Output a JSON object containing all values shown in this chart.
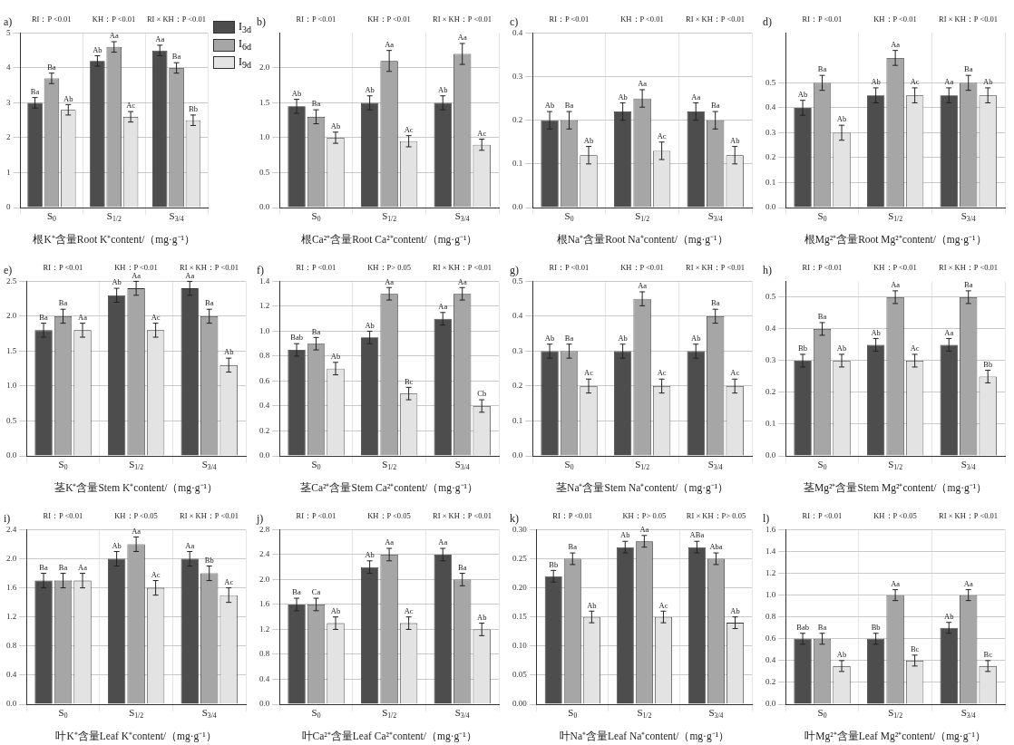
{
  "chart_data": [
    {
      "type": "bar",
      "title": "a)",
      "xlabel": "根K⁺含量Root K⁺content/（mg·g⁻¹）",
      "categories": [
        "S$_{0}$",
        "S$_{1/2}$",
        "S$_{3/4}$"
      ],
      "ylim": [
        0,
        5
      ],
      "yticks": [
        0,
        1,
        2,
        3,
        4,
        5
      ],
      "grid": true,
      "legend": "top right",
      "annotations": [
        "RI：P <0.01",
        "KH：P <0.01",
        "RI × KH：P <0.01"
      ],
      "series": [
        {
          "name": "I$_{3d}$",
          "color": "#4d4d4d",
          "values": [
            3.0,
            4.2,
            4.5
          ],
          "errors": [
            0.15,
            0.15,
            0.15
          ],
          "value_labels": [
            "Ba",
            "Ab",
            "Aa"
          ]
        },
        {
          "name": "I$_{6d}$",
          "color": "#a6a6a6",
          "values": [
            3.7,
            4.6,
            4.0
          ],
          "errors": [
            0.15,
            0.15,
            0.15
          ],
          "value_labels": [
            "Ba",
            "Aa",
            "Ba"
          ]
        },
        {
          "name": "I$_{9d}$",
          "color": "#e3e3e3",
          "values": [
            2.8,
            2.6,
            2.5
          ],
          "errors": [
            0.15,
            0.15,
            0.15
          ],
          "value_labels": [
            "Ab",
            "Ac",
            "Bb"
          ]
        }
      ]
    },
    {
      "type": "bar",
      "title": "b)",
      "xlabel": "根Ca²⁺含量Root Ca²⁺content/（mg·g⁻¹）",
      "categories": [
        "S$_{0}$",
        "S$_{1/2}$",
        "S$_{3/4}$"
      ],
      "ylim": [
        0,
        2.5
      ],
      "yticks": [
        {
          "value": 0,
          "label": "0.0"
        },
        0.5,
        {
          "value": 1,
          "label": "1.0"
        },
        1.5,
        {
          "value": 2,
          "label": "2.0"
        }
      ],
      "grid": true,
      "annotations": [
        "RI：P <0.01",
        "KH：P <0.01",
        "RI × KH：P <0.01"
      ],
      "series": [
        {
          "color": "#4d4d4d",
          "values": [
            1.45,
            1.5,
            1.5
          ],
          "errors": [
            0.1,
            0.1,
            0.1
          ],
          "value_labels": [
            "Ab",
            "Ab",
            "Ab"
          ]
        },
        {
          "color": "#a6a6a6",
          "values": [
            1.3,
            2.1,
            2.2
          ],
          "errors": [
            0.1,
            0.15,
            0.15
          ],
          "value_labels": [
            "Ba",
            "Aa",
            "Aa"
          ]
        },
        {
          "color": "#e3e3e3",
          "values": [
            1.0,
            0.95,
            0.9
          ],
          "errors": [
            0.08,
            0.08,
            0.08
          ],
          "value_labels": [
            "Ab",
            "Ac",
            "Ac"
          ]
        }
      ]
    },
    {
      "type": "bar",
      "title": "c)",
      "xlabel": "根Na⁺含量Root Na⁺content/（mg·g⁻¹）",
      "categories": [
        "S$_{0}$",
        "S$_{1/2}$",
        "S$_{3/4}$"
      ],
      "ylim": [
        0,
        0.4
      ],
      "yticks": [
        {
          "value": 0,
          "label": "0.0"
        },
        0.1,
        0.2,
        0.3,
        0.4
      ],
      "grid": true,
      "annotations": [
        "RI：P <0.01",
        "KH：P <0.01",
        "RI × KH：P <0.01"
      ],
      "series": [
        {
          "color": "#4d4d4d",
          "values": [
            0.2,
            0.22,
            0.22
          ],
          "errors": [
            0.02,
            0.02,
            0.02
          ],
          "value_labels": [
            "Ab",
            "Ab",
            "Aa"
          ]
        },
        {
          "color": "#a6a6a6",
          "values": [
            0.2,
            0.25,
            0.2
          ],
          "errors": [
            0.02,
            0.02,
            0.02
          ],
          "value_labels": [
            "Ba",
            "Aa",
            "Ba"
          ]
        },
        {
          "color": "#e3e3e3",
          "values": [
            0.12,
            0.13,
            0.12
          ],
          "errors": [
            0.02,
            0.02,
            0.02
          ],
          "value_labels": [
            "Ab",
            "Ac",
            "Ab"
          ]
        }
      ]
    },
    {
      "type": "bar",
      "title": "d)",
      "xlabel": "根Mg²⁺含量Root Mg²⁺content/（mg·g⁻¹）",
      "categories": [
        "S$_{0}$",
        "S$_{1/2}$",
        "S$_{3/4}$"
      ],
      "ylim": [
        0,
        0.7
      ],
      "yticks": [
        {
          "value": 0,
          "label": "0.0"
        },
        0.1,
        0.2,
        0.3,
        0.4,
        0.5
      ],
      "grid": true,
      "annotations": [
        "RI：P <0.01",
        "KH：P <0.01",
        "RI × KH：P <0.01"
      ],
      "series": [
        {
          "color": "#4d4d4d",
          "values": [
            0.4,
            0.45,
            0.45
          ],
          "errors": [
            0.03,
            0.03,
            0.03
          ],
          "value_labels": [
            "Ab",
            "Ab",
            "Aa"
          ]
        },
        {
          "color": "#a6a6a6",
          "values": [
            0.5,
            0.6,
            0.5
          ],
          "errors": [
            0.03,
            0.03,
            0.03
          ],
          "value_labels": [
            "Ba",
            "Aa",
            "Ba"
          ]
        },
        {
          "color": "#e3e3e3",
          "values": [
            0.3,
            0.45,
            0.45
          ],
          "errors": [
            0.03,
            0.03,
            0.03
          ],
          "value_labels": [
            "Ab",
            "Ac",
            "Ab"
          ]
        }
      ]
    },
    {
      "type": "bar",
      "title": "e)",
      "xlabel": "茎K⁺含量Stem K⁺content/（mg·g⁻¹）",
      "categories": [
        "S$_{0}$",
        "S$_{1/2}$",
        "S$_{3/4}$"
      ],
      "ylim": [
        0,
        2.5
      ],
      "yticks": [
        {
          "value": 0,
          "label": "0.0"
        },
        0.5,
        {
          "value": 1,
          "label": "1.0"
        },
        1.5,
        {
          "value": 2,
          "label": "2.0"
        },
        2.5
      ],
      "grid": true,
      "annotations": [
        "RI：P <0.01",
        "KH：P <0.01",
        "RI × KH：P <0.01"
      ],
      "series": [
        {
          "color": "#4d4d4d",
          "values": [
            1.8,
            2.3,
            2.4
          ],
          "errors": [
            0.1,
            0.1,
            0.1
          ],
          "value_labels": [
            "Ba",
            "Ab",
            "Aa"
          ]
        },
        {
          "color": "#a6a6a6",
          "values": [
            2.0,
            2.4,
            2.0
          ],
          "errors": [
            0.1,
            0.1,
            0.1
          ],
          "value_labels": [
            "Ba",
            "Aa",
            "Ba"
          ]
        },
        {
          "color": "#e3e3e3",
          "values": [
            1.8,
            1.8,
            1.3
          ],
          "errors": [
            0.1,
            0.1,
            0.1
          ],
          "value_labels": [
            "Aa",
            "Ac",
            "Ab"
          ]
        }
      ]
    },
    {
      "type": "bar",
      "title": "f)",
      "xlabel": "茎Ca²⁺含量Stem Ca²⁺content/（mg·g⁻¹）",
      "categories": [
        "S$_{0}$",
        "S$_{1/2}$",
        "S$_{3/4}$"
      ],
      "ylim": [
        0,
        1.4
      ],
      "yticks": [
        {
          "value": 0,
          "label": "0.0"
        },
        0.2,
        0.4,
        0.6,
        0.8,
        {
          "value": 1,
          "label": "1.0"
        },
        1.2,
        1.4
      ],
      "grid": true,
      "annotations": [
        "RI：P <0.01",
        "KH：P> 0.05",
        "RI × KH：P <0.01"
      ],
      "series": [
        {
          "color": "#4d4d4d",
          "values": [
            0.85,
            0.95,
            1.1
          ],
          "errors": [
            0.05,
            0.05,
            0.05
          ],
          "value_labels": [
            "Bab",
            "Ab",
            "Aa"
          ]
        },
        {
          "color": "#a6a6a6",
          "values": [
            0.9,
            1.3,
            1.3
          ],
          "errors": [
            0.05,
            0.05,
            0.05
          ],
          "value_labels": [
            "Ba",
            "Aa",
            "Aa"
          ]
        },
        {
          "color": "#e3e3e3",
          "values": [
            0.7,
            0.5,
            0.4
          ],
          "errors": [
            0.05,
            0.05,
            0.05
          ],
          "value_labels": [
            "Ab",
            "Bc",
            "Cb"
          ]
        }
      ]
    },
    {
      "type": "bar",
      "title": "g)",
      "xlabel": "茎Na⁺含量Stem Na⁺content/（mg·g⁻¹）",
      "categories": [
        "S$_{0}$",
        "S$_{1/2}$",
        "S$_{3/4}$"
      ],
      "ylim": [
        0,
        0.5
      ],
      "yticks": [
        {
          "value": 0,
          "label": "0.0"
        },
        0.1,
        0.2,
        0.3,
        0.4,
        0.5
      ],
      "grid": true,
      "annotations": [
        "RI：P <0.01",
        "KH：P <0.01",
        "RI × KH：P <0.01"
      ],
      "series": [
        {
          "color": "#4d4d4d",
          "values": [
            0.3,
            0.3,
            0.3
          ],
          "errors": [
            0.02,
            0.02,
            0.02
          ],
          "value_labels": [
            "Ab",
            "Ab",
            "Ab"
          ]
        },
        {
          "color": "#a6a6a6",
          "values": [
            0.3,
            0.45,
            0.4
          ],
          "errors": [
            0.02,
            0.02,
            0.02
          ],
          "value_labels": [
            "Ba",
            "Aa",
            "Ba"
          ]
        },
        {
          "color": "#e3e3e3",
          "values": [
            0.2,
            0.2,
            0.2
          ],
          "errors": [
            0.02,
            0.02,
            0.02
          ],
          "value_labels": [
            "Ac",
            "Ac",
            "Ac"
          ]
        }
      ]
    },
    {
      "type": "bar",
      "title": "h)",
      "xlabel": "茎Mg²⁺含量Stem Mg²⁺content/（mg·g⁻¹）",
      "categories": [
        "S$_{0}$",
        "S$_{1/2}$",
        "S$_{3/4}$"
      ],
      "ylim": [
        0,
        0.55
      ],
      "yticks": [
        {
          "value": 0,
          "label": "0.0"
        },
        0.1,
        0.2,
        0.3,
        0.4,
        0.5
      ],
      "grid": true,
      "annotations": [
        "RI：P <0.01",
        "KH：P <0.01",
        "RI × KH：P <0.01"
      ],
      "series": [
        {
          "color": "#4d4d4d",
          "values": [
            0.3,
            0.35,
            0.35
          ],
          "errors": [
            0.02,
            0.02,
            0.02
          ],
          "value_labels": [
            "Bb",
            "Ab",
            "Aa"
          ]
        },
        {
          "color": "#a6a6a6",
          "values": [
            0.4,
            0.5,
            0.5
          ],
          "errors": [
            0.02,
            0.02,
            0.02
          ],
          "value_labels": [
            "Ba",
            "Aa",
            "Ba"
          ]
        },
        {
          "color": "#e3e3e3",
          "values": [
            0.3,
            0.3,
            0.25
          ],
          "errors": [
            0.02,
            0.02,
            0.02
          ],
          "value_labels": [
            "Ab",
            "Ac",
            "Bb"
          ]
        }
      ]
    },
    {
      "type": "bar",
      "title": "i)",
      "xlabel": "叶K⁺含量Leaf K⁺content/（mg·g⁻¹）",
      "categories": [
        "S$_{0}$",
        "S$_{1/2}$",
        "S$_{3/4}$"
      ],
      "ylim": [
        0,
        2.4
      ],
      "yticks": [
        {
          "value": 0,
          "label": "0.0"
        },
        0.4,
        0.8,
        1.2,
        1.6,
        {
          "value": 2,
          "label": "2.0"
        },
        2.4
      ],
      "grid": true,
      "annotations": [
        "RI：P <0.01",
        "KH：P <0.05",
        "RI × KH：P <0.01"
      ],
      "series": [
        {
          "color": "#4d4d4d",
          "values": [
            1.7,
            2.0,
            2.0
          ],
          "errors": [
            0.1,
            0.1,
            0.1
          ],
          "value_labels": [
            "Ba",
            "Ab",
            "Aa"
          ]
        },
        {
          "color": "#a6a6a6",
          "values": [
            1.7,
            2.2,
            1.8
          ],
          "errors": [
            0.1,
            0.1,
            0.1
          ],
          "value_labels": [
            "Ba",
            "Aa",
            "Bb"
          ]
        },
        {
          "color": "#e3e3e3",
          "values": [
            1.7,
            1.6,
            1.5
          ],
          "errors": [
            0.1,
            0.1,
            0.1
          ],
          "value_labels": [
            "Aa",
            "Ac",
            "Ac"
          ]
        }
      ]
    },
    {
      "type": "bar",
      "title": "j)",
      "xlabel": "叶Ca²⁺含量Leaf Ca²⁺content/（mg·g⁻¹）",
      "categories": [
        "S$_{0}$",
        "S$_{1/2}$",
        "S$_{3/4}$"
      ],
      "ylim": [
        0,
        2.8
      ],
      "yticks": [
        {
          "value": 0,
          "label": "0.0"
        },
        0.4,
        0.8,
        1.2,
        1.6,
        {
          "value": 2,
          "label": "2.0"
        },
        2.4,
        2.8
      ],
      "grid": true,
      "annotations": [
        "RI：P <0.01",
        "KH：P <0.05",
        "RI × KH：P <0.01"
      ],
      "series": [
        {
          "color": "#4d4d4d",
          "values": [
            1.6,
            2.2,
            2.4
          ],
          "errors": [
            0.1,
            0.1,
            0.1
          ],
          "value_labels": [
            "Ba",
            "Ab",
            "Aa"
          ]
        },
        {
          "color": "#a6a6a6",
          "values": [
            1.6,
            2.4,
            2.0
          ],
          "errors": [
            0.1,
            0.1,
            0.1
          ],
          "value_labels": [
            "Ca",
            "Aa",
            "Ba"
          ]
        },
        {
          "color": "#e3e3e3",
          "values": [
            1.3,
            1.3,
            1.2
          ],
          "errors": [
            0.1,
            0.1,
            0.1
          ],
          "value_labels": [
            "Ab",
            "Ac",
            "Ab"
          ]
        }
      ]
    },
    {
      "type": "bar",
      "title": "k)",
      "xlabel": "叶Na⁺含量Leaf Na⁺content/（mg·g⁻¹）",
      "categories": [
        "S$_{0}$",
        "S$_{1/2}$",
        "S$_{3/4}$"
      ],
      "ylim": [
        0,
        0.3
      ],
      "yticks": [
        {
          "value": 0,
          "label": "0.00"
        },
        {
          "value": 0.05,
          "label": "0.05"
        },
        {
          "value": 0.1,
          "label": "0.10"
        },
        {
          "value": 0.15,
          "label": "0.15"
        },
        {
          "value": 0.2,
          "label": "0.20"
        },
        {
          "value": 0.25,
          "label": "0.25"
        },
        {
          "value": 0.3,
          "label": "0.30"
        }
      ],
      "grid": true,
      "annotations": [
        "RI：P <0.01",
        "KH：P> 0.05",
        "RI × KH：P> 0.05"
      ],
      "series": [
        {
          "color": "#4d4d4d",
          "values": [
            0.22,
            0.27,
            0.27
          ],
          "errors": [
            0.01,
            0.01,
            0.01
          ],
          "value_labels": [
            "Bb",
            "Ab",
            "ABa"
          ]
        },
        {
          "color": "#a6a6a6",
          "values": [
            0.25,
            0.28,
            0.25
          ],
          "errors": [
            0.01,
            0.01,
            0.01
          ],
          "value_labels": [
            "Ba",
            "Aa",
            "Aba"
          ]
        },
        {
          "color": "#e3e3e3",
          "values": [
            0.15,
            0.15,
            0.14
          ],
          "errors": [
            0.01,
            0.01,
            0.01
          ],
          "value_labels": [
            "Ab",
            "Ac",
            "Ab"
          ]
        }
      ]
    },
    {
      "type": "bar",
      "title": "l)",
      "xlabel": "叶Mg²⁺含量Leaf Mg²⁺content/（mg·g⁻¹）",
      "categories": [
        "S$_{0}$",
        "S$_{1/2}$",
        "S$_{3/4}$"
      ],
      "ylim": [
        0,
        1.6
      ],
      "yticks": [
        {
          "value": 0,
          "label": "0.0"
        },
        0.2,
        0.4,
        0.6,
        0.8,
        {
          "value": 1,
          "label": "1.0"
        },
        1.2,
        1.4,
        1.6
      ],
      "grid": true,
      "annotations": [
        "RI：P <0.01",
        "KH：P <0.05",
        "RI × KH：P <0.01"
      ],
      "series": [
        {
          "color": "#4d4d4d",
          "values": [
            0.6,
            0.6,
            0.7
          ],
          "errors": [
            0.05,
            0.05,
            0.05
          ],
          "value_labels": [
            "Bab",
            "Bb",
            "Ab"
          ]
        },
        {
          "color": "#a6a6a6",
          "values": [
            0.6,
            1.0,
            1.0
          ],
          "errors": [
            0.05,
            0.05,
            0.05
          ],
          "value_labels": [
            "Ba",
            "Aa",
            "Aa"
          ]
        },
        {
          "color": "#e3e3e3",
          "values": [
            0.35,
            0.4,
            0.35
          ],
          "errors": [
            0.05,
            0.05,
            0.05
          ],
          "value_labels": [
            "Ab",
            "Bc",
            "Bc"
          ]
        }
      ]
    }
  ]
}
